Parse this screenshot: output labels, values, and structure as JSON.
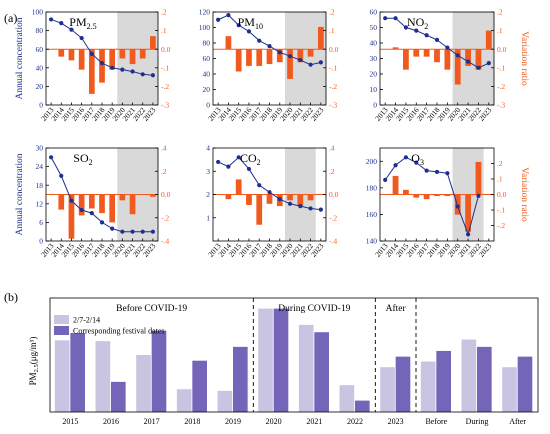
{
  "panel_a_letter": "(a)",
  "panel_b_letter": "(b)",
  "line_color": "#1f2f8f",
  "bar_color": "#f15a1e",
  "shade_color": "#d9d9d9",
  "bar_light": "#c9c4e2",
  "bar_dark": "#7465b9",
  "chart_data": [
    {
      "type": "bar+line",
      "title": "PM2.5",
      "title_main": "PM",
      "title_sub": "2.5",
      "x": [
        "2013",
        "2014",
        "2015",
        "2016",
        "2017",
        "2018",
        "2019",
        "2020",
        "2021",
        "2022",
        "2023"
      ],
      "concentration": [
        92,
        88,
        81,
        72,
        55,
        45,
        40,
        38,
        36,
        33,
        32
      ],
      "variation": [
        null,
        -0.04,
        -0.06,
        -0.11,
        -0.24,
        -0.18,
        -0.11,
        -0.05,
        -0.08,
        -0.05,
        0.07
      ],
      "ylim_left": [
        0,
        100
      ],
      "yticks_left": [
        0,
        20,
        40,
        60,
        80,
        100
      ],
      "ylim_right": [
        -0.3,
        0.2
      ],
      "yticks_right": [
        -0.3,
        -0.2,
        -0.1,
        0.0,
        0.1,
        0.2
      ],
      "ylabel_left": "Annual concentration",
      "ylabel_right": "",
      "shaded_from": "2020",
      "shaded_to": "2023"
    },
    {
      "type": "bar+line",
      "title": "PM10",
      "title_main": "PM",
      "title_sub": "10",
      "x": [
        "2013",
        "2014",
        "2015",
        "2016",
        "2017",
        "2018",
        "2019",
        "2020",
        "2021",
        "2022",
        "2023"
      ],
      "concentration": [
        110,
        116,
        103,
        95,
        83,
        76,
        68,
        63,
        58,
        52,
        55
      ],
      "variation": [
        null,
        0.07,
        -0.12,
        -0.09,
        -0.09,
        -0.08,
        -0.07,
        -0.16,
        -0.07,
        -0.04,
        0.12
      ],
      "ylim_left": [
        0,
        120
      ],
      "yticks_left": [
        0,
        20,
        40,
        60,
        80,
        100,
        120
      ],
      "ylim_right": [
        -0.3,
        0.2
      ],
      "yticks_right": [
        -0.3,
        -0.2,
        -0.1,
        0.0,
        0.1,
        0.2
      ],
      "ylabel_left": "",
      "ylabel_right": "",
      "shaded_from": "2020",
      "shaded_to": "2023"
    },
    {
      "type": "bar+line",
      "title": "NO2",
      "title_main": "NO",
      "title_sub": "2",
      "x": [
        "2013",
        "2014",
        "2015",
        "2016",
        "2017",
        "2018",
        "2019",
        "2020",
        "2021",
        "2022",
        "2023"
      ],
      "concentration": [
        56,
        56,
        50,
        48,
        45,
        42,
        37,
        32,
        28,
        24,
        27
      ],
      "variation": [
        null,
        0.01,
        -0.11,
        -0.04,
        -0.04,
        -0.07,
        -0.11,
        -0.19,
        -0.09,
        -0.11,
        0.1
      ],
      "ylim_left": [
        0,
        60
      ],
      "yticks_left": [
        0,
        10,
        20,
        30,
        40,
        50,
        60
      ],
      "ylim_right": [
        -0.3,
        0.2
      ],
      "yticks_right": [
        -0.3,
        -0.2,
        -0.1,
        0.0,
        0.1,
        0.2
      ],
      "ylabel_left": "",
      "ylabel_right": "Variation ratio",
      "shaded_from": "2020",
      "shaded_to": "2023"
    },
    {
      "type": "bar+line",
      "title": "SO2",
      "title_main": "SO",
      "title_sub": "2",
      "x": [
        "2013",
        "2014",
        "2015",
        "2016",
        "2017",
        "2018",
        "2019",
        "2020",
        "2021",
        "2022",
        "2023"
      ],
      "concentration": [
        27,
        21,
        13,
        10,
        9,
        6,
        4,
        3,
        3,
        3,
        3
      ],
      "variation": [
        null,
        -0.13,
        -0.38,
        -0.18,
        -0.12,
        -0.16,
        -0.24,
        -0.05,
        -0.17,
        0.0,
        -0.02
      ],
      "ylim_left": [
        0,
        30
      ],
      "yticks_left": [
        0,
        6,
        12,
        18,
        24,
        30
      ],
      "ylim_right": [
        -0.4,
        0.4
      ],
      "yticks_right": [
        -0.4,
        -0.2,
        0.0,
        0.2,
        0.4
      ],
      "ylabel_left": "Annual concentration",
      "ylabel_right": "",
      "shaded_from": "2020",
      "shaded_to": "2023"
    },
    {
      "type": "bar+line",
      "title": "CO2",
      "title_main": "CO",
      "title_sub": "2",
      "x": [
        "2013",
        "2014",
        "2015",
        "2016",
        "2017",
        "2018",
        "2019",
        "2020",
        "2021",
        "2022",
        "2023"
      ],
      "concentration": [
        3.4,
        3.2,
        3.6,
        3.1,
        2.4,
        2.1,
        1.8,
        1.6,
        1.5,
        1.4,
        1.35
      ],
      "variation": [
        null,
        -0.04,
        0.13,
        -0.09,
        -0.26,
        -0.08,
        -0.1,
        -0.05,
        -0.1,
        -0.05,
        null
      ],
      "ylim_left": [
        0,
        4
      ],
      "yticks_left": [
        1,
        2,
        3,
        4
      ],
      "ylim_right": [
        -0.4,
        0.4
      ],
      "yticks_right": [
        -0.4,
        -0.2,
        0.0,
        0.2,
        0.4
      ],
      "ylabel_left": "",
      "ylabel_right": "",
      "shaded_from": "2020",
      "shaded_to": "2022"
    },
    {
      "type": "bar+line",
      "title": "O3",
      "title_main": "O",
      "title_sub": "3",
      "x": [
        "2013",
        "2014",
        "2015",
        "2016",
        "2017",
        "2018",
        "2019",
        "2020",
        "2021",
        "2022",
        "2023"
      ],
      "concentration": [
        186,
        197,
        203,
        199,
        193,
        192,
        191,
        166,
        145,
        174,
        null
      ],
      "variation": [
        null,
        0.12,
        0.03,
        -0.02,
        -0.03,
        -0.01,
        -0.01,
        -0.13,
        -0.24,
        0.21,
        null
      ],
      "ylim_left": [
        140,
        210
      ],
      "yticks_left": [
        140,
        160,
        180,
        200
      ],
      "ylim_right": [
        -0.3,
        0.3
      ],
      "yticks_right": [
        -0.2,
        -0.1,
        0.0,
        0.1,
        0.2
      ],
      "ylabel_left": "",
      "ylabel_right": "Variation ratio",
      "shaded_from": "2020",
      "shaded_to": "2022"
    },
    {
      "type": "bar",
      "categories": [
        "2015",
        "2016",
        "2017",
        "2018",
        "2019",
        "2020",
        "2021",
        "2022",
        "2023",
        "Before",
        "During",
        "After"
      ],
      "series": [
        {
          "name": "2/7-2/14",
          "values": [
            88,
            87,
            70,
            28,
            26,
            127,
            107,
            33,
            55,
            62,
            89,
            55
          ]
        },
        {
          "name": "Corresponding festival dates",
          "values": [
            97,
            37,
            100,
            63,
            80,
            127,
            98,
            14,
            68,
            75,
            80,
            68
          ]
        }
      ],
      "ylabel_main": "PM",
      "ylabel_sub": "2.5",
      "ylabel_unit": "(μg/m³)",
      "ylim": [
        0,
        140
      ],
      "groups": [
        {
          "label": "Before COVID-19",
          "from": 0,
          "to": 4
        },
        {
          "label": "During COVID-19",
          "from": 5,
          "to": 7
        },
        {
          "label": "After",
          "from": 8,
          "to": 8
        }
      ],
      "legend_position": "top-left"
    }
  ]
}
